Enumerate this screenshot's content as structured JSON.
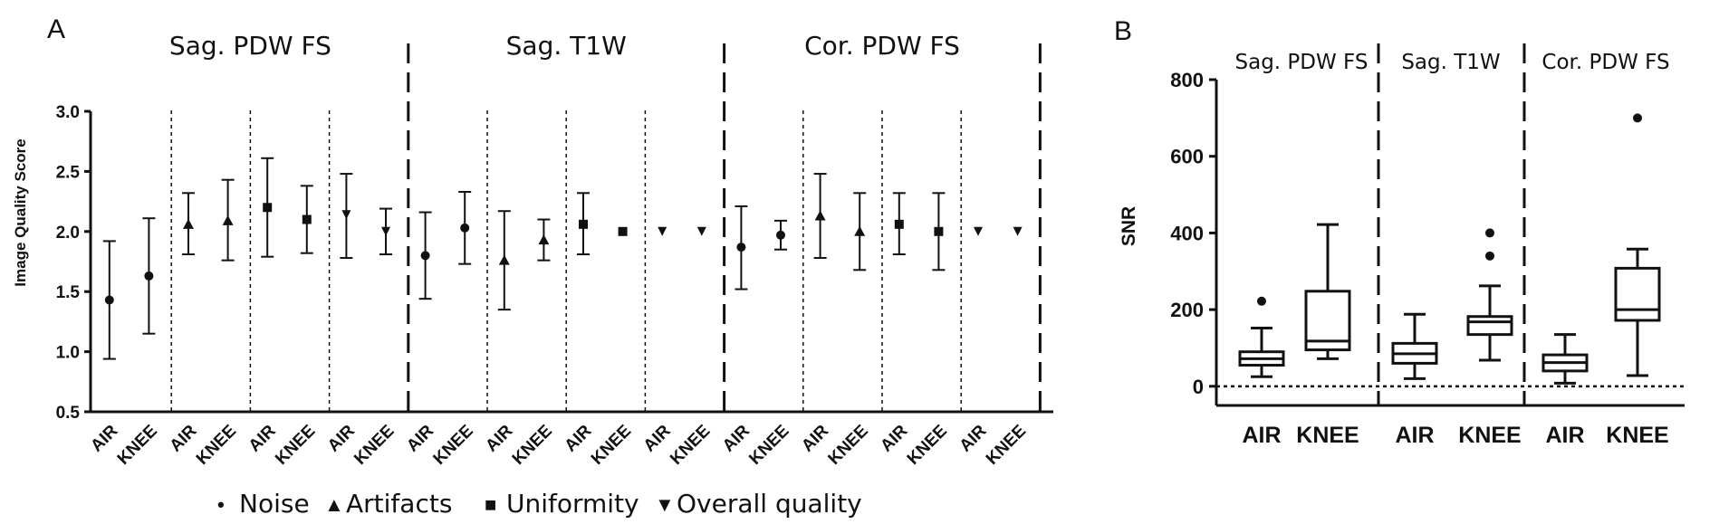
{
  "chart_data": [
    {
      "panel": "A",
      "type": "scatter",
      "title": "",
      "ylabel": "Image Quality Score",
      "ylim": [
        0.5,
        3.0
      ],
      "yticks": [
        "0.5",
        "1.0",
        "1.5",
        "2.0",
        "2.5",
        "3.0"
      ],
      "sections": [
        "Sag. PDW FS",
        "Sag. T1W",
        "Cor. PDW FS"
      ],
      "categories": [
        "AIR",
        "KNEE",
        "AIR",
        "KNEE",
        "AIR",
        "KNEE",
        "AIR",
        "KNEE",
        "AIR",
        "KNEE",
        "AIR",
        "KNEE",
        "AIR",
        "KNEE",
        "AIR",
        "KNEE",
        "AIR",
        "KNEE",
        "AIR",
        "KNEE",
        "AIR",
        "KNEE",
        "AIR",
        "KNEE"
      ],
      "legend": [
        {
          "marker": "•",
          "label": "Noise"
        },
        {
          "marker": "▲",
          "label": "Artifacts"
        },
        {
          "marker": "■",
          "label": "Uniformity"
        },
        {
          "marker": "▼",
          "label": "Overall quality"
        }
      ],
      "points": [
        {
          "section": "Sag. PDW FS",
          "group": "AIR",
          "metric": "Noise",
          "mean": 1.43,
          "low": 0.94,
          "high": 1.92
        },
        {
          "section": "Sag. PDW FS",
          "group": "KNEE",
          "metric": "Noise",
          "mean": 1.63,
          "low": 1.15,
          "high": 2.11
        },
        {
          "section": "Sag. PDW FS",
          "group": "AIR",
          "metric": "Artifacts",
          "mean": 2.06,
          "low": 1.81,
          "high": 2.32
        },
        {
          "section": "Sag. PDW FS",
          "group": "KNEE",
          "metric": "Artifacts",
          "mean": 2.09,
          "low": 1.76,
          "high": 2.43
        },
        {
          "section": "Sag. PDW FS",
          "group": "AIR",
          "metric": "Uniformity",
          "mean": 2.2,
          "low": 1.79,
          "high": 2.61
        },
        {
          "section": "Sag. PDW FS",
          "group": "KNEE",
          "metric": "Uniformity",
          "mean": 2.1,
          "low": 1.82,
          "high": 2.38
        },
        {
          "section": "Sag. PDW FS",
          "group": "AIR",
          "metric": "Overall quality",
          "mean": 2.14,
          "low": 1.78,
          "high": 2.48
        },
        {
          "section": "Sag. PDW FS",
          "group": "KNEE",
          "metric": "Overall quality",
          "mean": 2.0,
          "low": 1.81,
          "high": 2.19
        },
        {
          "section": "Sag. T1W",
          "group": "AIR",
          "metric": "Noise",
          "mean": 1.8,
          "low": 1.44,
          "high": 2.16
        },
        {
          "section": "Sag. T1W",
          "group": "KNEE",
          "metric": "Noise",
          "mean": 2.03,
          "low": 1.73,
          "high": 2.33
        },
        {
          "section": "Sag. T1W",
          "group": "AIR",
          "metric": "Artifacts",
          "mean": 1.76,
          "low": 1.35,
          "high": 2.17
        },
        {
          "section": "Sag. T1W",
          "group": "KNEE",
          "metric": "Artifacts",
          "mean": 1.93,
          "low": 1.76,
          "high": 2.1
        },
        {
          "section": "Sag. T1W",
          "group": "AIR",
          "metric": "Uniformity",
          "mean": 2.06,
          "low": 1.81,
          "high": 2.32
        },
        {
          "section": "Sag. T1W",
          "group": "KNEE",
          "metric": "Uniformity",
          "mean": 2.0,
          "low": 2.0,
          "high": 2.0
        },
        {
          "section": "Sag. T1W",
          "group": "AIR",
          "metric": "Overall quality",
          "mean": 2.0,
          "low": 2.0,
          "high": 2.0
        },
        {
          "section": "Sag. T1W",
          "group": "KNEE",
          "metric": "Overall quality",
          "mean": 2.0,
          "low": 2.0,
          "high": 2.0
        },
        {
          "section": "Cor. PDW FS",
          "group": "AIR",
          "metric": "Noise",
          "mean": 1.87,
          "low": 1.52,
          "high": 2.21
        },
        {
          "section": "Cor. PDW FS",
          "group": "KNEE",
          "metric": "Noise",
          "mean": 1.97,
          "low": 1.85,
          "high": 2.09
        },
        {
          "section": "Cor. PDW FS",
          "group": "AIR",
          "metric": "Artifacts",
          "mean": 2.13,
          "low": 1.78,
          "high": 2.48
        },
        {
          "section": "Cor. PDW FS",
          "group": "KNEE",
          "metric": "Artifacts",
          "mean": 2.0,
          "low": 1.68,
          "high": 2.32
        },
        {
          "section": "Cor. PDW FS",
          "group": "AIR",
          "metric": "Uniformity",
          "mean": 2.06,
          "low": 1.81,
          "high": 2.32
        },
        {
          "section": "Cor. PDW FS",
          "group": "KNEE",
          "metric": "Uniformity",
          "mean": 2.0,
          "low": 1.68,
          "high": 2.32
        },
        {
          "section": "Cor. PDW FS",
          "group": "AIR",
          "metric": "Overall quality",
          "mean": 2.0,
          "low": 2.0,
          "high": 2.0
        },
        {
          "section": "Cor. PDW FS",
          "group": "KNEE",
          "metric": "Overall quality",
          "mean": 2.0,
          "low": 2.0,
          "high": 2.0
        }
      ]
    },
    {
      "panel": "B",
      "type": "box",
      "title": "",
      "ylabel": "SNR",
      "ylim": [
        -50,
        800
      ],
      "yticks": [
        "0",
        "200",
        "400",
        "600",
        "800"
      ],
      "reference_line": 0,
      "sections": [
        "Sag. PDW FS",
        "Sag. T1W",
        "Cor. PDW FS"
      ],
      "categories": [
        "AIR",
        "KNEE",
        "AIR",
        "KNEE",
        "AIR",
        "KNEE"
      ],
      "boxes": [
        {
          "section": "Sag. PDW FS",
          "group": "AIR",
          "min": 25,
          "q1": 55,
          "median": 72,
          "q3": 90,
          "max": 152,
          "outliers": [
            222
          ]
        },
        {
          "section": "Sag. PDW FS",
          "group": "KNEE",
          "min": 72,
          "q1": 95,
          "median": 118,
          "q3": 248,
          "max": 422,
          "outliers": []
        },
        {
          "section": "Sag. T1W",
          "group": "AIR",
          "min": 20,
          "q1": 60,
          "median": 85,
          "q3": 112,
          "max": 188,
          "outliers": []
        },
        {
          "section": "Sag. T1W",
          "group": "KNEE",
          "min": 68,
          "q1": 135,
          "median": 168,
          "q3": 182,
          "max": 262,
          "outliers": [
            340,
            400
          ]
        },
        {
          "section": "Cor. PDW FS",
          "group": "AIR",
          "min": 8,
          "q1": 40,
          "median": 62,
          "q3": 82,
          "max": 135,
          "outliers": []
        },
        {
          "section": "Cor. PDW FS",
          "group": "KNEE",
          "min": 28,
          "q1": 172,
          "median": 200,
          "q3": 308,
          "max": 358,
          "outliers": [
            700
          ]
        }
      ]
    }
  ],
  "marker_colors": {
    "ink": "#111111",
    "reference": "#111111"
  }
}
